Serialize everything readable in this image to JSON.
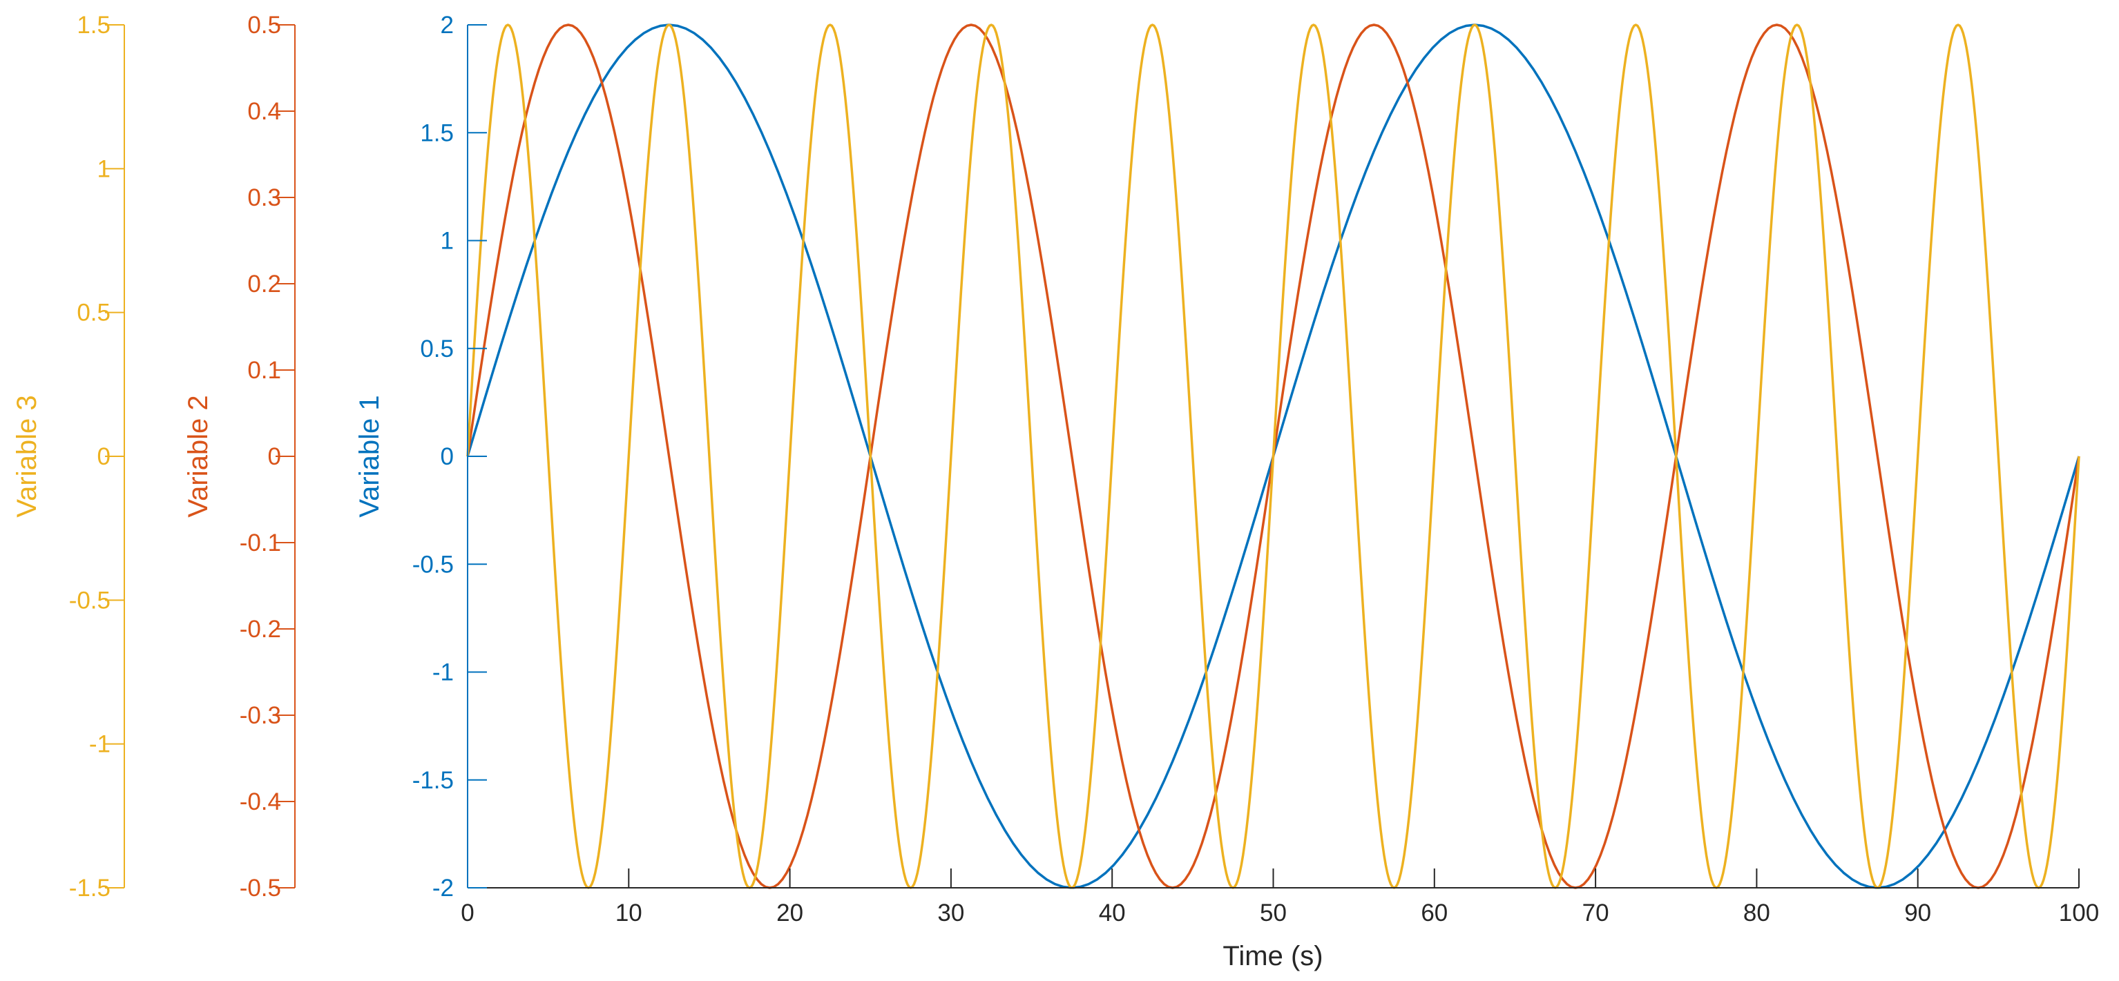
{
  "chart_data": {
    "type": "line",
    "title": "",
    "xlabel": "Time (s)",
    "xlim": [
      0,
      100
    ],
    "x_ticks": [
      "0",
      "10",
      "20",
      "30",
      "40",
      "50",
      "60",
      "70",
      "80",
      "90",
      "100"
    ],
    "grid": false,
    "legend": "none",
    "axes": [
      {
        "label": "Variable 1",
        "color": "#0072BD",
        "ylim": [
          -2,
          2
        ],
        "ticks": [
          "-2",
          "-1.5",
          "-1",
          "-0.5",
          "0",
          "0.5",
          "1",
          "1.5",
          "2"
        ]
      },
      {
        "label": "Variable 2",
        "color": "#D95319",
        "ylim": [
          -0.5,
          0.5
        ],
        "ticks": [
          "-0.5",
          "-0.4",
          "-0.3",
          "-0.2",
          "-0.1",
          "0",
          "0.1",
          "0.2",
          "0.3",
          "0.4",
          "0.5"
        ]
      },
      {
        "label": "Variable 3",
        "color": "#EDB120",
        "ylim": [
          -1.5,
          1.5
        ],
        "ticks": [
          "-1.5",
          "-1",
          "-0.5",
          "0",
          "0.5",
          "1",
          "1.5"
        ]
      }
    ],
    "series": [
      {
        "axis": 0,
        "color": "#0072BD",
        "x": [
          0,
          12.5,
          25,
          37.5,
          50,
          62.5,
          75,
          87.5,
          100
        ],
        "y": [
          0,
          2,
          0,
          -2,
          0,
          2,
          0,
          -2,
          0
        ]
      },
      {
        "axis": 0,
        "color": "#D95319",
        "x": [
          0,
          6.25,
          12.5,
          18.75,
          25,
          31.25,
          37.5,
          43.75,
          50,
          56.25,
          62.5,
          68.75,
          75,
          81.25,
          87.5,
          93.75,
          100
        ],
        "y": [
          0,
          2,
          0,
          -2,
          0,
          2,
          0,
          -2,
          0,
          2,
          0,
          -2,
          0,
          2,
          0,
          -2,
          0
        ]
      },
      {
        "axis": 0,
        "color": "#EDB120",
        "x": [
          0,
          2.5,
          5,
          7.5,
          10,
          12.5,
          15,
          17.5,
          20,
          22.5,
          25,
          27.5,
          30,
          32.5,
          35,
          37.5,
          40,
          42.5,
          45,
          47.5,
          50,
          52.5,
          55,
          57.5,
          60,
          62.5,
          65,
          67.5,
          70,
          72.5,
          75,
          77.5,
          80,
          82.5,
          85,
          87.5,
          90,
          92.5,
          95,
          97.5,
          100
        ],
        "y": [
          0,
          2,
          0,
          -2,
          0,
          2,
          0,
          -2,
          0,
          2,
          0,
          -2,
          0,
          2,
          0,
          -2,
          0,
          2,
          0,
          -2,
          0,
          2,
          0,
          -2,
          0,
          2,
          0,
          -2,
          0,
          2,
          0,
          -2,
          0,
          2,
          0,
          -2,
          0,
          2,
          0,
          -2,
          0
        ]
      }
    ]
  }
}
